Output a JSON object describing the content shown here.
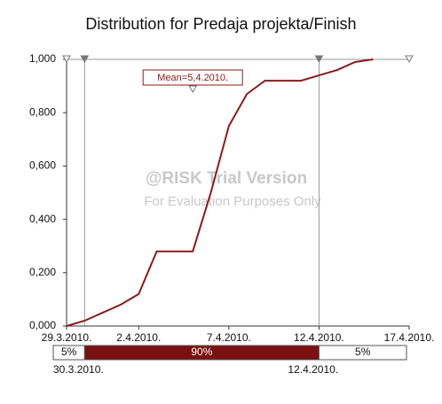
{
  "chart_data": {
    "type": "line",
    "title": "Distribution for Predaja projekta/Finish",
    "x": [
      "2010-03-29",
      "2010-03-30",
      "2010-03-31",
      "2010-04-01",
      "2010-04-02",
      "2010-04-03",
      "2010-04-04",
      "2010-04-05",
      "2010-04-06",
      "2010-04-07",
      "2010-04-08",
      "2010-04-09",
      "2010-04-10",
      "2010-04-11",
      "2010-04-12",
      "2010-04-13",
      "2010-04-14",
      "2010-04-15"
    ],
    "values": [
      0,
      0.02,
      0.05,
      0.08,
      0.12,
      0.28,
      0.28,
      0.28,
      0.5,
      0.75,
      0.87,
      0.92,
      0.92,
      0.92,
      0.94,
      0.96,
      0.99,
      1.0
    ],
    "color": "#8b1a1a",
    "xlim": [
      "2010-03-29",
      "2010-04-17"
    ],
    "xticks": [
      {
        "value": "2010-03-29",
        "label": "29.3.2010."
      },
      {
        "value": "2010-04-02",
        "label": "2.4.2010."
      },
      {
        "value": "2010-04-07",
        "label": "7.4.2010."
      },
      {
        "value": "2010-04-12",
        "label": "12.4.2010."
      },
      {
        "value": "2010-04-17",
        "label": "17.4.2010."
      }
    ],
    "ylim": [
      0,
      1
    ],
    "yticks": [
      {
        "value": 0,
        "label": "0,000"
      },
      {
        "value": 0.2,
        "label": "0,200"
      },
      {
        "value": 0.4,
        "label": "0,400"
      },
      {
        "value": 0.6,
        "label": "0,600"
      },
      {
        "value": 0.8,
        "label": "0,800"
      },
      {
        "value": 1,
        "label": "1,000"
      }
    ],
    "mean": {
      "value": "2010-04-05",
      "label": "Mean=5,4.2010."
    },
    "delimiters": [
      {
        "value": "2010-03-30",
        "label": "30.3.2010."
      },
      {
        "value": "2010-04-12",
        "label": "12.4.2010."
      }
    ],
    "band_labels": [
      "5%",
      "90%",
      "5%"
    ],
    "watermark": [
      "@RISK Trial Version",
      "For Evaluation Purposes Only"
    ]
  }
}
